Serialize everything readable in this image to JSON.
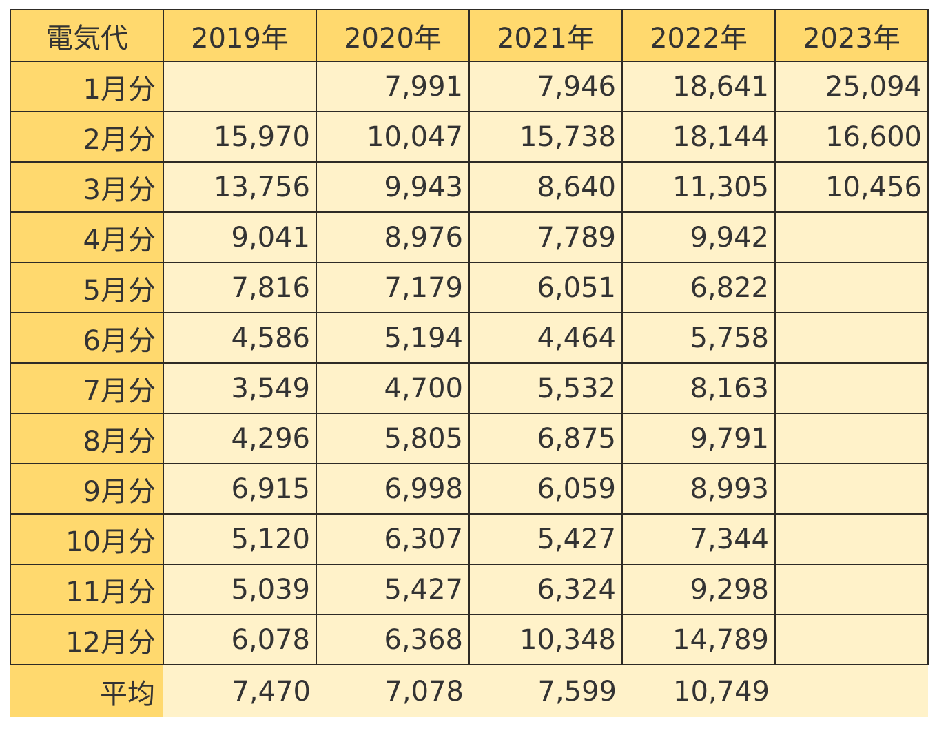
{
  "table": {
    "header": {
      "corner": "電気代",
      "years": [
        "2019年",
        "2020年",
        "2021年",
        "2022年",
        "2023年"
      ]
    },
    "rows": [
      {
        "label": "1月分",
        "values": [
          "",
          "7,991",
          "7,946",
          "18,641",
          "25,094"
        ]
      },
      {
        "label": "2月分",
        "values": [
          "15,970",
          "10,047",
          "15,738",
          "18,144",
          "16,600"
        ]
      },
      {
        "label": "3月分",
        "values": [
          "13,756",
          "9,943",
          "8,640",
          "11,305",
          "10,456"
        ]
      },
      {
        "label": "4月分",
        "values": [
          "9,041",
          "8,976",
          "7,789",
          "9,942",
          ""
        ]
      },
      {
        "label": "5月分",
        "values": [
          "7,816",
          "7,179",
          "6,051",
          "6,822",
          ""
        ]
      },
      {
        "label": "6月分",
        "values": [
          "4,586",
          "5,194",
          "4,464",
          "5,758",
          ""
        ]
      },
      {
        "label": "7月分",
        "values": [
          "3,549",
          "4,700",
          "5,532",
          "8,163",
          ""
        ]
      },
      {
        "label": "8月分",
        "values": [
          "4,296",
          "5,805",
          "6,875",
          "9,791",
          ""
        ]
      },
      {
        "label": "9月分",
        "values": [
          "6,915",
          "6,998",
          "6,059",
          "8,993",
          ""
        ]
      },
      {
        "label": "10月分",
        "values": [
          "5,120",
          "6,307",
          "5,427",
          "7,344",
          ""
        ]
      },
      {
        "label": "11月分",
        "values": [
          "5,039",
          "5,427",
          "6,324",
          "9,298",
          ""
        ]
      },
      {
        "label": "12月分",
        "values": [
          "6,078",
          "6,368",
          "10,348",
          "14,789",
          ""
        ]
      }
    ],
    "average": {
      "label": "平均",
      "values": [
        "7,470",
        "7,078",
        "7,599",
        "10,749",
        ""
      ]
    }
  },
  "colors": {
    "header_fill": "#ffd96e",
    "cell_fill": "#fff2c9",
    "grid_line": "#2e2b26",
    "text": "#333333"
  }
}
